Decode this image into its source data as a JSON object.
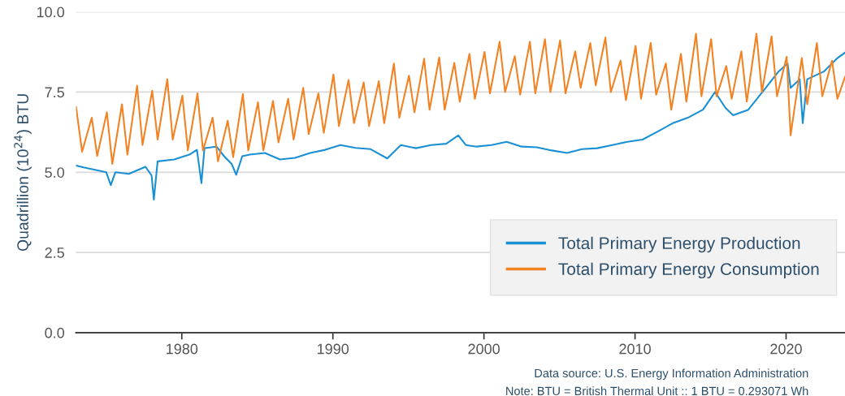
{
  "chart_data": {
    "type": "line",
    "ylabel": "Quadrillion (10$^{24}$) BTU",
    "xlim": [
      1973,
      2023.9
    ],
    "xticks": [
      1980,
      1990,
      2000,
      2010,
      2020
    ],
    "ylim": [
      0,
      10
    ],
    "yticks": [
      {
        "value": 0,
        "label": "0.0"
      },
      {
        "value": 2.5,
        "label": "2.5"
      },
      {
        "value": 5,
        "label": "5.0"
      },
      {
        "value": 7.5,
        "label": "7.5"
      },
      {
        "value": 10,
        "label": "10.0"
      }
    ],
    "grid": "y",
    "legend": "bottom right",
    "line_style": "solid",
    "annotations": [
      "Data source: U.S. Energy Information Administration",
      "Note: BTU = British Thermal Unit :: 1 BTU = 0.293071 Wh"
    ],
    "series": [
      {
        "name": "Total Primary Energy Production",
        "color": "#1a90d4",
        "x": [
          1973.0,
          1973.5,
          1974.0,
          1974.5,
          1975.0,
          1975.3,
          1975.6,
          1976.5,
          1977.0,
          1977.6,
          1978.0,
          1978.15,
          1978.4,
          1979.5,
          1980.5,
          1981.0,
          1981.3,
          1981.5,
          1982.3,
          1982.8,
          1983.3,
          1983.6,
          1984.0,
          1984.5,
          1985.5,
          1986.5,
          1987.5,
          1988.5,
          1989.5,
          1990.5,
          1991.5,
          1992.5,
          1993.6,
          1994.5,
          1995.5,
          1996.5,
          1997.5,
          1998.3,
          1998.8,
          1999.5,
          2000.5,
          2001.5,
          2002.5,
          2003.5,
          2004.5,
          2005.5,
          2006.5,
          2007.5,
          2008.5,
          2009.5,
          2010.5,
          2011.5,
          2012.5,
          2013.5,
          2014.5,
          2015.3,
          2016.0,
          2016.5,
          2017.5,
          2018.5,
          2019.5,
          2020.1,
          2020.3,
          2020.9,
          2021.1,
          2021.4,
          2022.5,
          2023.4,
          2023.9
        ],
        "values": [
          5.21,
          5.15,
          5.1,
          5.05,
          5.0,
          4.6,
          5.0,
          4.95,
          5.05,
          5.17,
          4.9,
          4.15,
          5.34,
          5.4,
          5.55,
          5.7,
          4.66,
          5.75,
          5.8,
          5.5,
          5.26,
          4.92,
          5.5,
          5.55,
          5.6,
          5.4,
          5.45,
          5.6,
          5.7,
          5.85,
          5.76,
          5.72,
          5.43,
          5.85,
          5.75,
          5.85,
          5.89,
          6.15,
          5.85,
          5.8,
          5.85,
          5.95,
          5.8,
          5.78,
          5.68,
          5.6,
          5.72,
          5.75,
          5.85,
          5.95,
          6.02,
          6.27,
          6.53,
          6.7,
          6.95,
          7.5,
          7.0,
          6.78,
          6.95,
          7.54,
          8.14,
          8.39,
          7.63,
          7.9,
          6.53,
          7.9,
          8.14,
          8.56,
          8.73
        ]
      },
      {
        "name": "Total Primary Energy Consumption",
        "color": "#f28222",
        "x": [
          1973.0,
          1973.4,
          1974.04,
          1974.4,
          1975.04,
          1975.4,
          1976.04,
          1976.4,
          1977.04,
          1977.4,
          1978.04,
          1978.4,
          1979.04,
          1979.4,
          1980.04,
          1980.4,
          1981.04,
          1981.4,
          1982.04,
          1982.4,
          1983.04,
          1983.4,
          1984.04,
          1984.4,
          1985.04,
          1985.4,
          1986.04,
          1986.4,
          1987.04,
          1987.4,
          1988.04,
          1988.4,
          1989.04,
          1989.4,
          1990.04,
          1990.4,
          1991.04,
          1991.4,
          1992.04,
          1992.4,
          1993.04,
          1993.4,
          1994.04,
          1994.4,
          1995.04,
          1995.4,
          1996.04,
          1996.4,
          1997.04,
          1997.4,
          1998.04,
          1998.4,
          1999.04,
          1999.4,
          2000.04,
          2000.4,
          2001.04,
          2001.4,
          2002.04,
          2002.4,
          2003.04,
          2003.4,
          2004.04,
          2004.4,
          2005.04,
          2005.4,
          2006.04,
          2006.4,
          2007.04,
          2007.4,
          2008.04,
          2008.4,
          2009.04,
          2009.4,
          2010.04,
          2010.4,
          2011.04,
          2011.4,
          2012.04,
          2012.4,
          2013.04,
          2013.4,
          2014.04,
          2014.4,
          2015.04,
          2015.4,
          2016.04,
          2016.4,
          2017.04,
          2017.4,
          2018.04,
          2018.4,
          2019.04,
          2019.4,
          2020.04,
          2020.3,
          2021.04,
          2021.4,
          2022.04,
          2022.4,
          2023.04,
          2023.4,
          2023.9
        ],
        "values": [
          7.04,
          5.64,
          6.7,
          5.51,
          6.87,
          5.26,
          7.12,
          5.55,
          7.7,
          5.85,
          7.54,
          6.02,
          7.9,
          6.02,
          7.39,
          5.68,
          7.46,
          5.68,
          6.7,
          5.34,
          6.61,
          5.47,
          7.44,
          5.68,
          7.18,
          5.68,
          7.22,
          5.93,
          7.29,
          6.02,
          7.63,
          6.19,
          7.46,
          6.23,
          8.05,
          6.44,
          7.88,
          6.53,
          7.8,
          6.44,
          7.84,
          6.53,
          8.39,
          6.7,
          8.01,
          6.87,
          8.54,
          6.95,
          8.58,
          6.95,
          8.41,
          7.2,
          8.69,
          7.29,
          8.75,
          7.46,
          9.07,
          7.5,
          8.62,
          7.42,
          9.07,
          7.46,
          9.15,
          7.5,
          9.11,
          7.46,
          8.77,
          7.63,
          9.03,
          7.71,
          9.2,
          7.5,
          8.48,
          7.25,
          8.94,
          7.29,
          9.03,
          7.42,
          8.39,
          6.95,
          8.69,
          7.2,
          9.32,
          7.37,
          9.15,
          7.37,
          8.31,
          7.29,
          8.77,
          7.2,
          9.32,
          7.5,
          9.24,
          7.37,
          8.6,
          6.15,
          8.56,
          7.12,
          9.03,
          7.37,
          8.48,
          7.29,
          7.97
        ]
      }
    ]
  }
}
